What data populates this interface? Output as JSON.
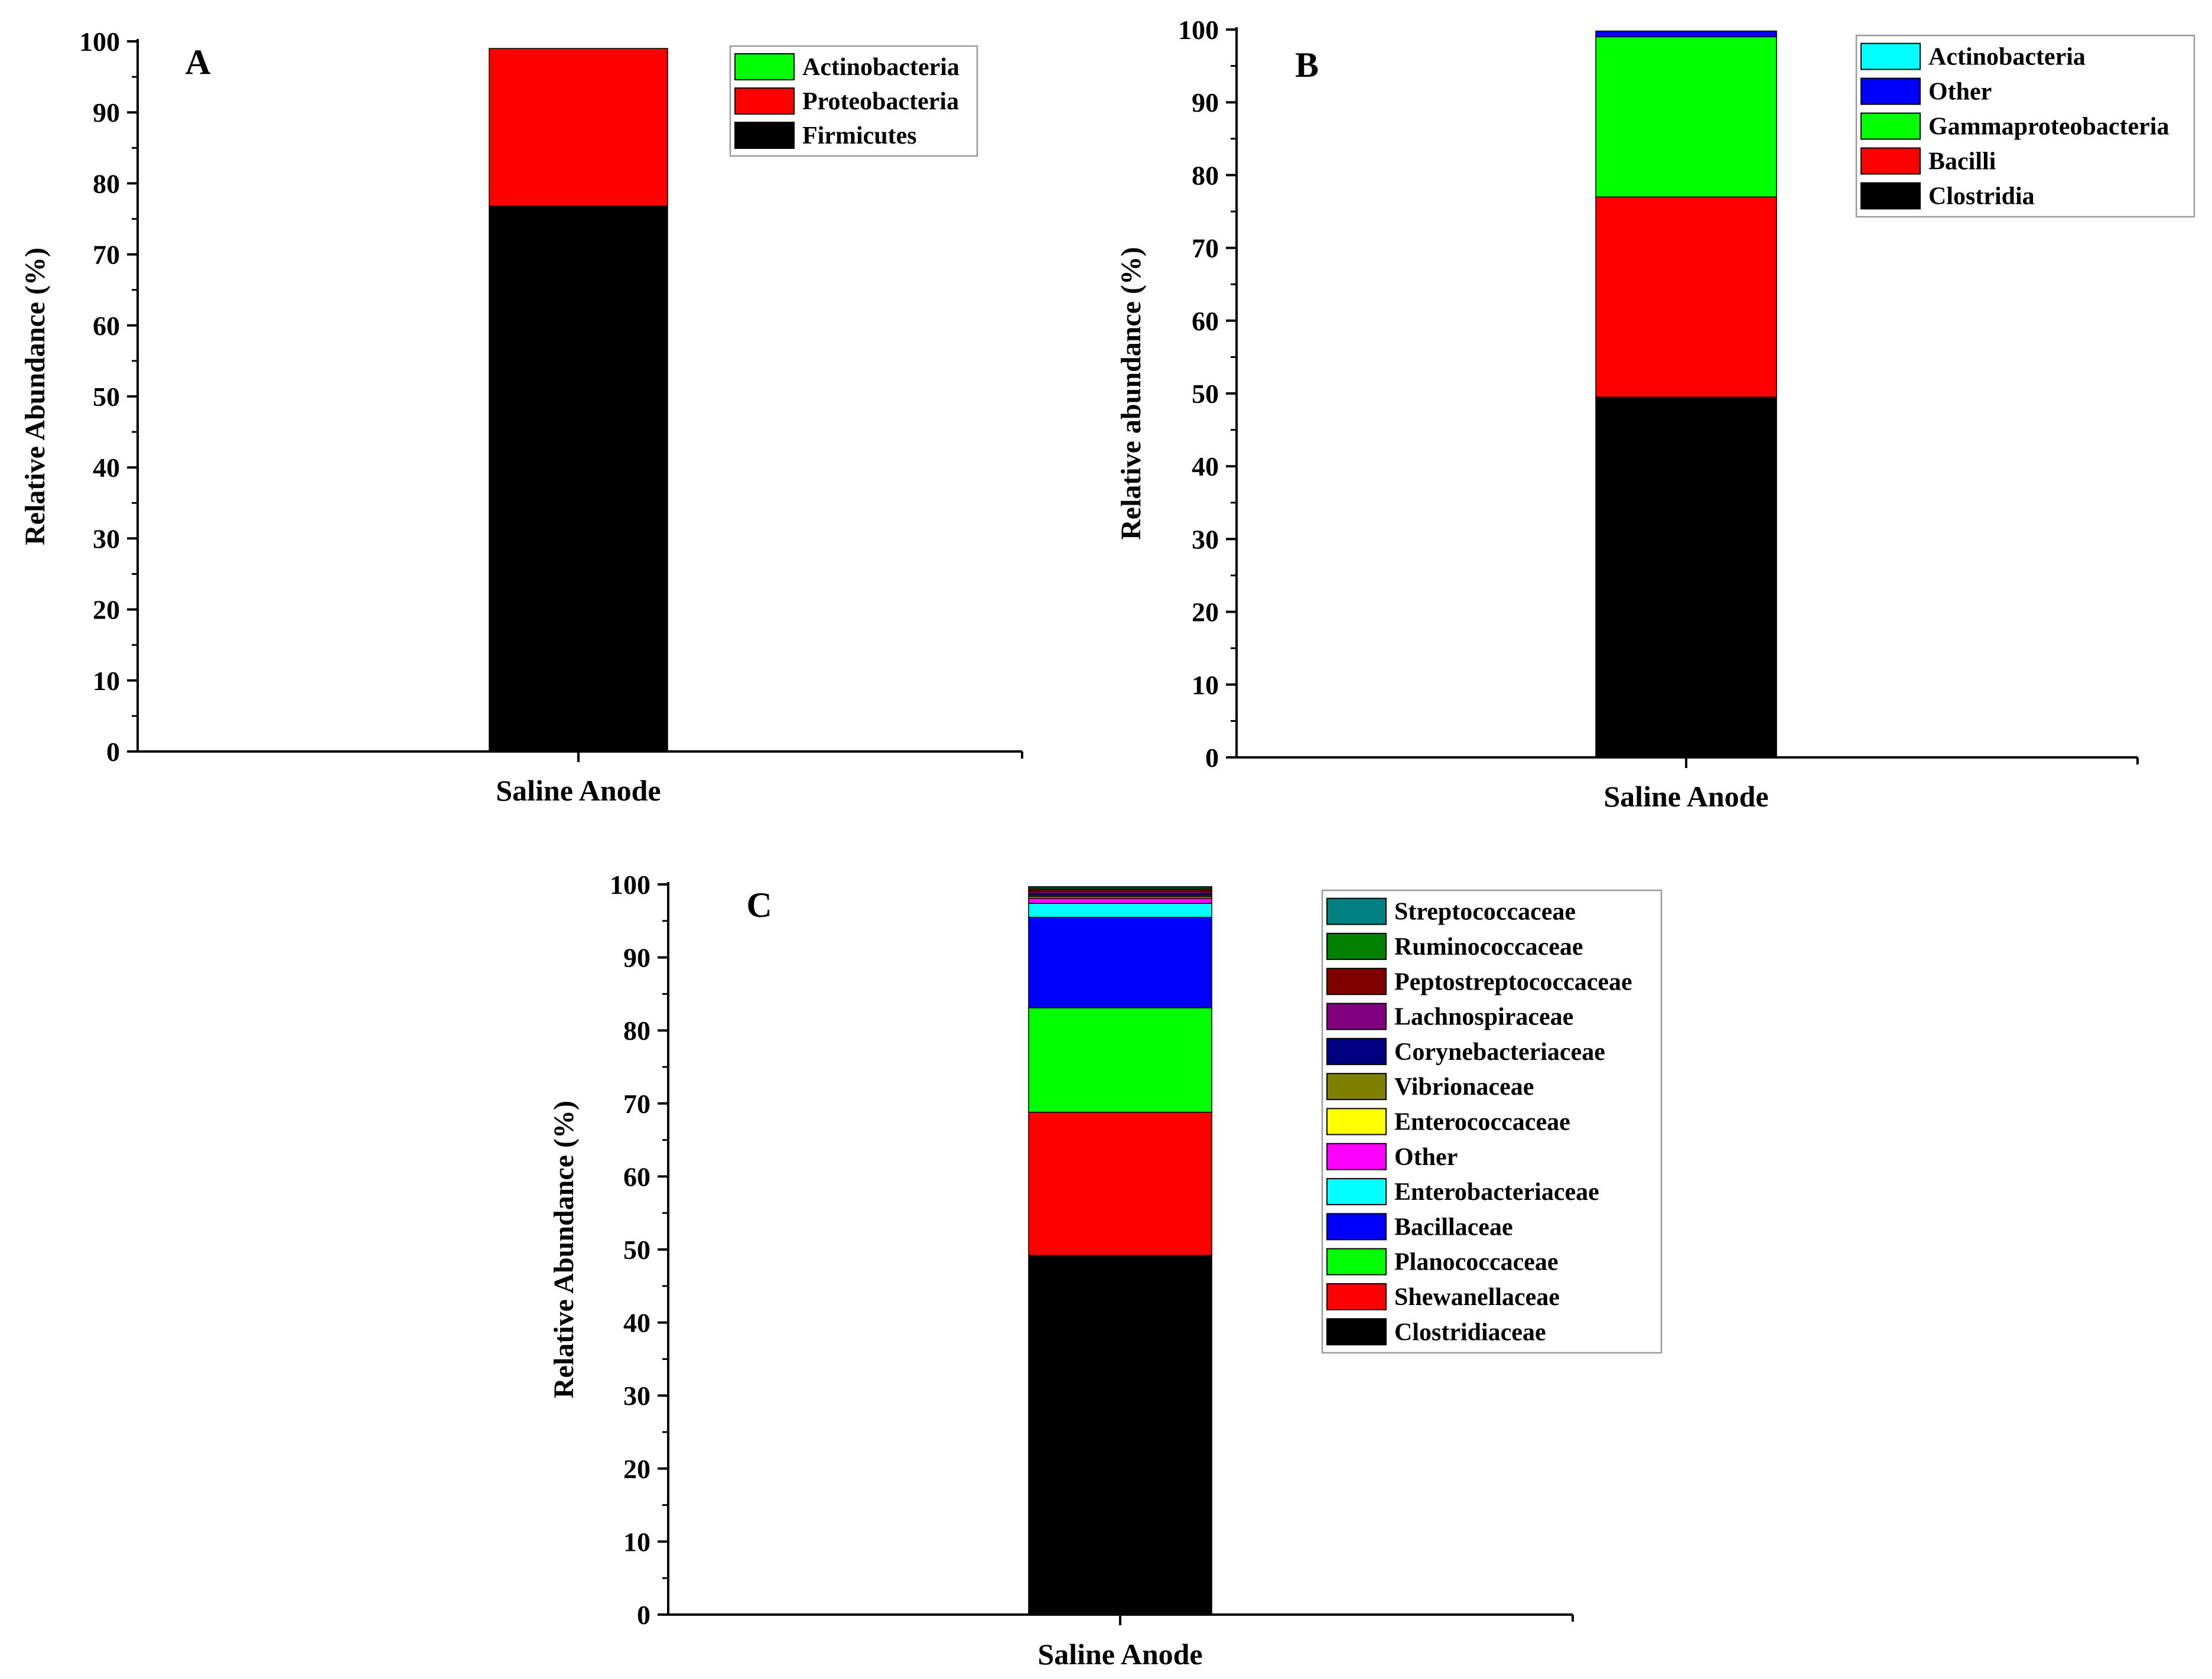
{
  "figure": {
    "panels": [
      "A",
      "B",
      "C"
    ]
  },
  "chart_data": [
    {
      "panel": "A",
      "type": "bar",
      "stacked": true,
      "categories": [
        "Saline Anode"
      ],
      "series": [
        {
          "name": "Firmicutes",
          "values": [
            76.8
          ],
          "color": "#000000"
        },
        {
          "name": "Proteobacteria",
          "values": [
            22.2
          ],
          "color": "#ff0000"
        },
        {
          "name": "Actinobacteria",
          "values": [
            0.0
          ],
          "color": "#00ff00"
        }
      ],
      "legend_order": [
        "Actinobacteria",
        "Proteobacteria",
        "Firmicutes"
      ],
      "xlabel": "Saline Anode",
      "ylabel": "Relative Abundance (%)",
      "ylim": [
        0,
        100
      ],
      "yticks": [
        0,
        10,
        20,
        30,
        40,
        50,
        60,
        70,
        80,
        90,
        100
      ],
      "legend_position": "top-right"
    },
    {
      "panel": "B",
      "type": "bar",
      "stacked": true,
      "categories": [
        "Saline Anode"
      ],
      "series": [
        {
          "name": "Clostridia",
          "values": [
            49.5
          ],
          "color": "#000000"
        },
        {
          "name": "Bacilli",
          "values": [
            27.5
          ],
          "color": "#ff0000"
        },
        {
          "name": "Gammaproteobacteria",
          "values": [
            22.0
          ],
          "color": "#00ff00"
        },
        {
          "name": "Other",
          "values": [
            0.8
          ],
          "color": "#0000ff"
        },
        {
          "name": "Actinobacteria",
          "values": [
            0.0
          ],
          "color": "#00ffff"
        }
      ],
      "legend_order": [
        "Actinobacteria",
        "Other",
        "Gammaproteobacteria",
        "Bacilli",
        "Clostridia"
      ],
      "xlabel": "Saline Anode",
      "ylabel": "Relative abundance (%)",
      "ylim": [
        0,
        100
      ],
      "yticks": [
        0,
        10,
        20,
        30,
        40,
        50,
        60,
        70,
        80,
        90,
        100
      ],
      "legend_position": "top-right"
    },
    {
      "panel": "C",
      "type": "bar",
      "stacked": true,
      "categories": [
        "Saline Anode"
      ],
      "series": [
        {
          "name": "Clostridiaceae",
          "values": [
            49.2
          ],
          "color": "#000000"
        },
        {
          "name": "Shewanellaceae",
          "values": [
            19.6
          ],
          "color": "#ff0000"
        },
        {
          "name": "Planococcaceae",
          "values": [
            14.3
          ],
          "color": "#00ff00"
        },
        {
          "name": "Bacillaceae",
          "values": [
            12.4
          ],
          "color": "#0000ff"
        },
        {
          "name": "Enterobacteriaceae",
          "values": [
            1.9
          ],
          "color": "#00ffff"
        },
        {
          "name": "Other",
          "values": [
            0.7
          ],
          "color": "#ff00ff"
        },
        {
          "name": "Enterococcaceae",
          "values": [
            0.2
          ],
          "color": "#ffff00"
        },
        {
          "name": "Vibrionaceae",
          "values": [
            0.2
          ],
          "color": "#808000"
        },
        {
          "name": "Corynebacteriaceae",
          "values": [
            0.2
          ],
          "color": "#000080"
        },
        {
          "name": "Lachnospiraceae",
          "values": [
            0.3
          ],
          "color": "#800080"
        },
        {
          "name": "Peptostreptococcaceae",
          "values": [
            0.3
          ],
          "color": "#800000"
        },
        {
          "name": "Ruminococcaceae",
          "values": [
            0.2
          ],
          "color": "#008000"
        },
        {
          "name": "Streptococcaceae",
          "values": [
            0.2
          ],
          "color": "#008080"
        }
      ],
      "legend_order": [
        "Streptococcaceae",
        "Ruminococcaceae",
        "Peptostreptococcaceae",
        "Lachnospiraceae",
        "Corynebacteriaceae",
        "Vibrionaceae",
        "Enterococcaceae",
        "Other",
        "Enterobacteriaceae",
        "Bacillaceae",
        "Planococcaceae",
        "Shewanellaceae",
        "Clostridiaceae"
      ],
      "xlabel": "Saline Anode",
      "ylabel": "Relative Abundance (%)",
      "ylim": [
        0,
        100
      ],
      "yticks": [
        0,
        10,
        20,
        30,
        40,
        50,
        60,
        70,
        80,
        90,
        100
      ],
      "legend_position": "top-right"
    }
  ]
}
